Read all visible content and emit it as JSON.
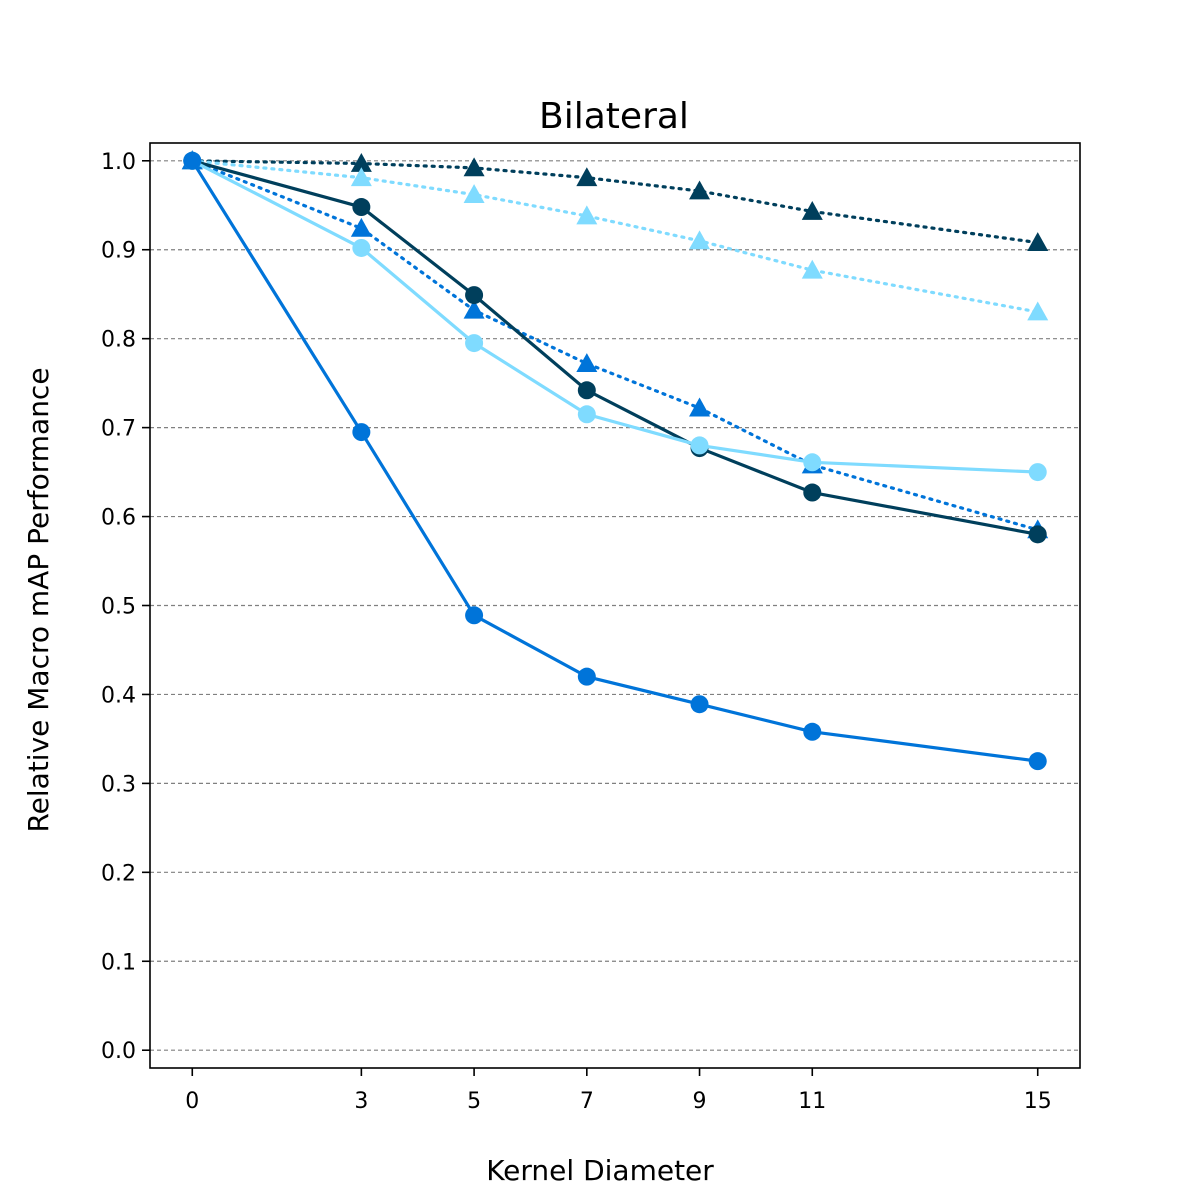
{
  "chart_data": {
    "type": "line",
    "title": "Bilateral",
    "xlabel": "Kernel Diameter",
    "ylabel": "Relative Macro mAP Performance",
    "x": [
      0,
      3,
      5,
      7,
      9,
      11,
      15
    ],
    "xticks": [
      "0",
      "3",
      "5",
      "7",
      "9",
      "11",
      "15"
    ],
    "yticks": [
      "0.0",
      "0.1",
      "0.2",
      "0.3",
      "0.4",
      "0.5",
      "0.6",
      "0.7",
      "0.8",
      "0.9",
      "1.0"
    ],
    "xlim": [
      -0.75,
      15.75
    ],
    "ylim": [
      -0.02,
      1.02
    ],
    "grid": "horizontal dashed",
    "legend": "none",
    "series": [
      {
        "values": [
          1.0,
          0.997,
          0.992,
          0.981,
          0.966,
          0.943,
          0.908
        ],
        "color": "#003f5c",
        "linestyle": "dotted",
        "marker": "triangle"
      },
      {
        "values": [
          1.0,
          0.981,
          0.962,
          0.938,
          0.91,
          0.877,
          0.83
        ],
        "color": "#7fdbff",
        "linestyle": "dotted",
        "marker": "triangle"
      },
      {
        "values": [
          1.0,
          0.924,
          0.832,
          0.772,
          0.722,
          0.658,
          0.585
        ],
        "color": "#0074d9",
        "linestyle": "dotted",
        "marker": "triangle"
      },
      {
        "values": [
          1.0,
          0.948,
          0.849,
          0.742,
          0.677,
          0.627,
          0.58
        ],
        "color": "#003f5c",
        "linestyle": "solid",
        "marker": "circle"
      },
      {
        "values": [
          1.0,
          0.902,
          0.795,
          0.715,
          0.68,
          0.661,
          0.65
        ],
        "color": "#7fdbff",
        "linestyle": "solid",
        "marker": "circle"
      },
      {
        "values": [
          1.0,
          0.695,
          0.489,
          0.42,
          0.389,
          0.358,
          0.325
        ],
        "color": "#0074d9",
        "linestyle": "solid",
        "marker": "circle"
      }
    ]
  }
}
